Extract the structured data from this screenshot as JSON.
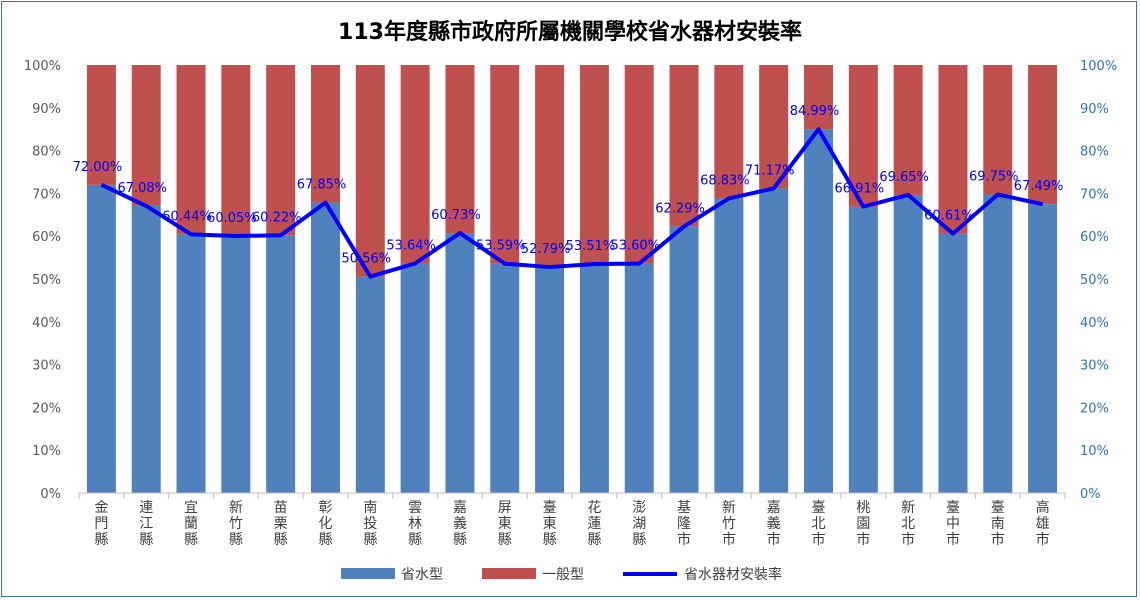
{
  "chart_data": {
    "type": "bar",
    "stacked": true,
    "title": "113年度縣市政府所屬機關學校省水器材安裝率",
    "categories": [
      "金門縣",
      "連江縣",
      "宜蘭縣",
      "新竹縣",
      "苗栗縣",
      "彰化縣",
      "南投縣",
      "雲林縣",
      "嘉義縣",
      "屏東縣",
      "臺東縣",
      "花蓮縣",
      "澎湖縣",
      "基隆市",
      "新竹市",
      "嘉義市",
      "臺北市",
      "桃園市",
      "新北市",
      "臺中市",
      "臺南市",
      "高雄市"
    ],
    "series": [
      {
        "name": "省水型",
        "type": "bar",
        "color": "#4f81bd",
        "values": [
          72.0,
          67.08,
          60.44,
          60.05,
          60.22,
          67.85,
          50.56,
          53.64,
          60.73,
          53.59,
          52.79,
          53.51,
          53.6,
          62.29,
          68.83,
          71.17,
          84.99,
          66.91,
          69.65,
          60.61,
          69.75,
          67.49
        ]
      },
      {
        "name": "一般型",
        "type": "bar",
        "color": "#c0504d",
        "values": [
          28.0,
          32.92,
          39.56,
          39.95,
          39.78,
          32.15,
          49.44,
          46.36,
          39.27,
          46.41,
          47.21,
          46.49,
          46.4,
          37.71,
          31.17,
          28.83,
          15.01,
          33.09,
          30.35,
          39.39,
          30.25,
          32.51
        ]
      },
      {
        "name": "省水器材安裝率",
        "type": "line",
        "color": "#0000ff",
        "values": [
          72.0,
          67.08,
          60.44,
          60.05,
          60.22,
          67.85,
          50.56,
          53.64,
          60.73,
          53.59,
          52.79,
          53.51,
          53.6,
          62.29,
          68.83,
          71.17,
          84.99,
          66.91,
          69.65,
          60.61,
          69.75,
          67.49
        ],
        "labels": [
          "72.00%",
          "67.08%",
          "60.44%",
          "60.05%",
          "60.22%",
          "67.85%",
          "50.56%",
          "53.64%",
          "60.73%",
          "53.59%",
          "52.79%",
          "53.51%",
          "53.60%",
          "62.29%",
          "68.83%",
          "71.17%",
          "84.99%",
          "66.91%",
          "69.65%",
          "60.61%",
          "69.75%",
          "67.49%"
        ]
      }
    ],
    "y_ticks": [
      "0%",
      "10%",
      "20%",
      "30%",
      "40%",
      "50%",
      "60%",
      "70%",
      "80%",
      "90%",
      "100%"
    ],
    "ylim": [
      0,
      100
    ],
    "secondary_ylim": [
      0,
      100
    ],
    "grid": false,
    "legend_position": "bottom"
  }
}
